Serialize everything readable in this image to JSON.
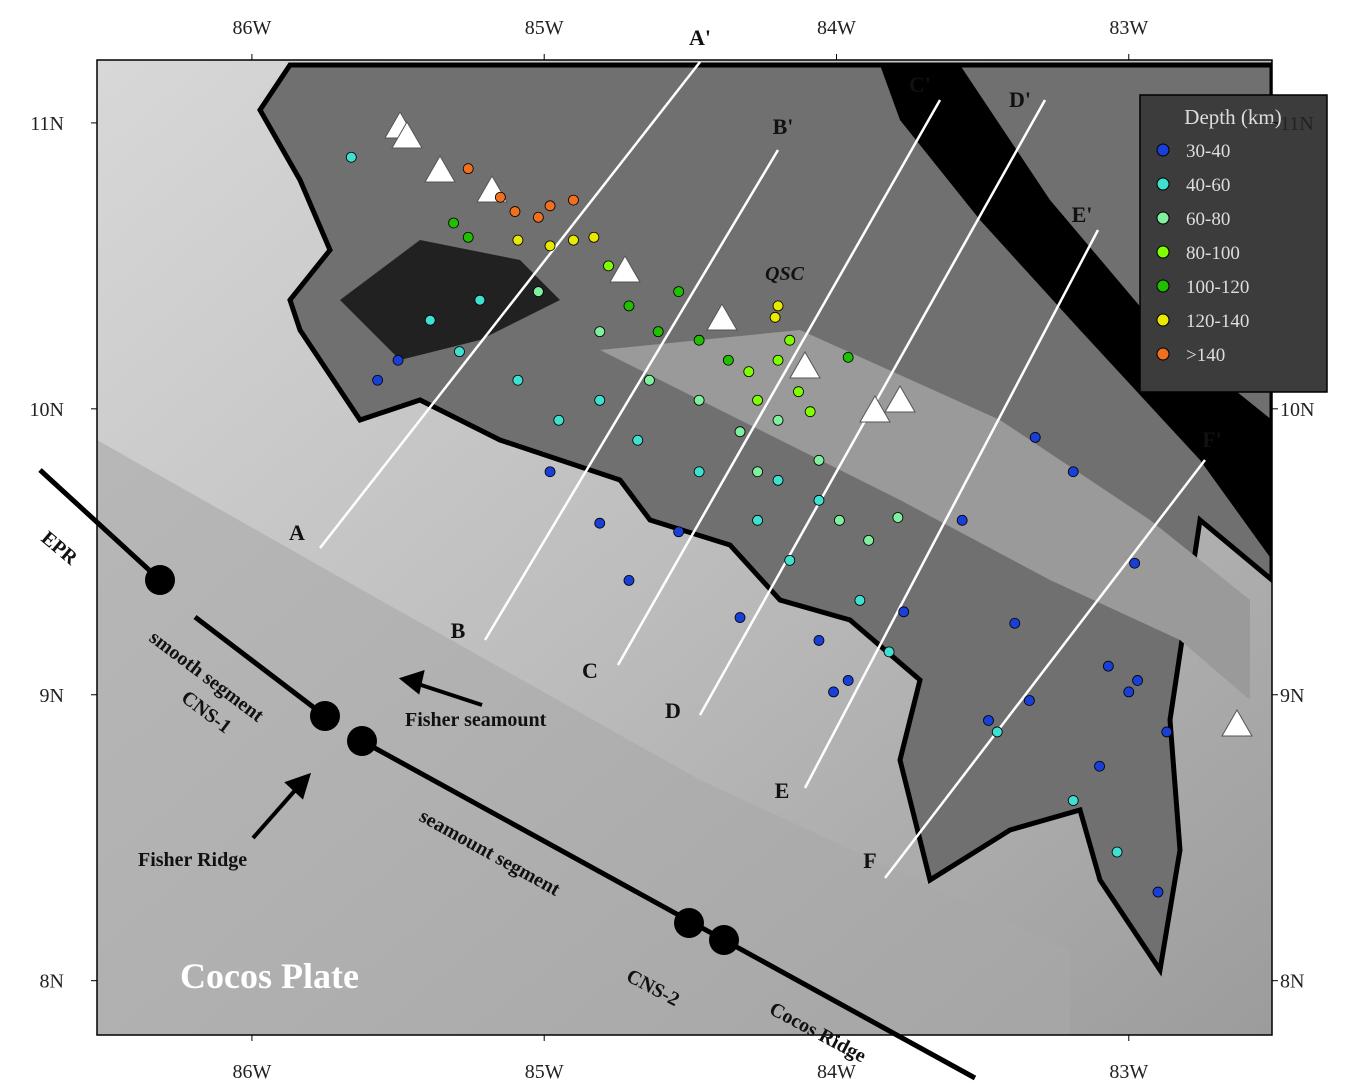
{
  "map": {
    "lonlim": [
      -86.53,
      -82.51
    ],
    "latlim": [
      7.81,
      11.22
    ],
    "lon_ticks": [
      {
        "value": -86,
        "label": "86W"
      },
      {
        "value": -85,
        "label": "85W"
      },
      {
        "value": -84,
        "label": "84W"
      },
      {
        "value": -83,
        "label": "83W"
      }
    ],
    "lat_ticks": [
      {
        "value": 11,
        "label": "11N"
      },
      {
        "value": 10,
        "label": "10N"
      },
      {
        "value": 9,
        "label": "9N"
      },
      {
        "value": 8,
        "label": "8N"
      }
    ],
    "legend_title": "Depth (km)",
    "earthquakes": [
      {
        "name": "30-40",
        "color": "#1a3fd6",
        "lon": [
          -83.32,
          -83.19,
          -83.57,
          -82.98,
          -83.07,
          -83.0,
          -82.87,
          -83.1,
          -82.9,
          -83.96,
          -84.06,
          -83.77,
          -84.33,
          -84.81,
          -84.98,
          -85.5,
          -85.57,
          -83.39,
          -83.34,
          -84.71,
          -84.54,
          -83.48,
          -84.01,
          -82.97
        ],
        "lat": [
          9.9,
          9.78,
          9.61,
          9.46,
          9.1,
          9.01,
          8.87,
          8.75,
          8.31,
          9.05,
          9.19,
          9.29,
          9.27,
          9.6,
          9.78,
          10.17,
          10.1,
          9.25,
          8.98,
          9.4,
          9.57,
          8.91,
          9.01,
          9.05
        ]
      },
      {
        "name": "40-60",
        "color": "#40e0d0",
        "lon": [
          -85.66,
          -85.39,
          -85.22,
          -85.09,
          -84.95,
          -84.81,
          -84.68,
          -84.47,
          -84.27,
          -84.16,
          -84.06,
          -83.92,
          -83.82,
          -83.45,
          -83.19,
          -83.04,
          -84.2,
          -85.29
        ],
        "lat": [
          10.88,
          10.31,
          10.38,
          10.1,
          9.96,
          10.03,
          9.89,
          9.78,
          9.61,
          9.47,
          9.68,
          9.33,
          9.15,
          8.87,
          8.63,
          8.45,
          9.75,
          10.2
        ]
      },
      {
        "name": "60-80",
        "color": "#80f0a0",
        "lon": [
          -85.02,
          -84.81,
          -84.64,
          -84.47,
          -84.33,
          -84.2,
          -84.06,
          -83.99,
          -83.89,
          -83.79,
          -84.27
        ],
        "lat": [
          10.41,
          10.27,
          10.1,
          10.03,
          9.92,
          9.96,
          9.82,
          9.61,
          9.54,
          9.62,
          9.78
        ]
      },
      {
        "name": "80-100",
        "color": "#80ff00",
        "lon": [
          -84.3,
          -84.2,
          -84.13,
          -84.27,
          -84.09,
          -84.78,
          -84.16
        ],
        "lat": [
          10.13,
          10.17,
          10.06,
          10.03,
          9.99,
          10.5,
          10.24
        ]
      },
      {
        "name": "100-120",
        "color": "#20c000",
        "lon": [
          -85.31,
          -85.26,
          -84.71,
          -84.61,
          -84.47,
          -84.37,
          -83.96,
          -84.54
        ],
        "lat": [
          10.65,
          10.6,
          10.36,
          10.27,
          10.24,
          10.17,
          10.18,
          10.41
        ]
      },
      {
        "name": "120-140",
        "color": "#e8e800",
        "lon": [
          -85.09,
          -84.98,
          -84.9,
          -84.83,
          -84.2,
          -84.21
        ],
        "lat": [
          10.59,
          10.57,
          10.59,
          10.6,
          10.36,
          10.32
        ]
      },
      {
        "name": ">140",
        "color": "#f07020",
        "lon": [
          -85.26,
          -85.15,
          -85.1,
          -85.02,
          -84.9,
          -84.98
        ],
        "lat": [
          10.84,
          10.74,
          10.69,
          10.67,
          10.73,
          10.71
        ]
      }
    ],
    "profiles": [
      "A",
      "A'",
      "B",
      "B'",
      "C",
      "C'",
      "D",
      "D'",
      "E",
      "E'",
      "F",
      "F'"
    ],
    "labels": {
      "qsc": "QSC",
      "epr": "EPR",
      "smooth": "smooth segment",
      "cns1": "CNS-1",
      "fisher_seamount": "Fisher seamount",
      "fisher_ridge": "Fisher Ridge",
      "seamount_segment": "seamount segment",
      "cns2": "CNS-2",
      "cocos_ridge": "Cocos Ridge",
      "cocos_plate": "Cocos Plate"
    }
  }
}
